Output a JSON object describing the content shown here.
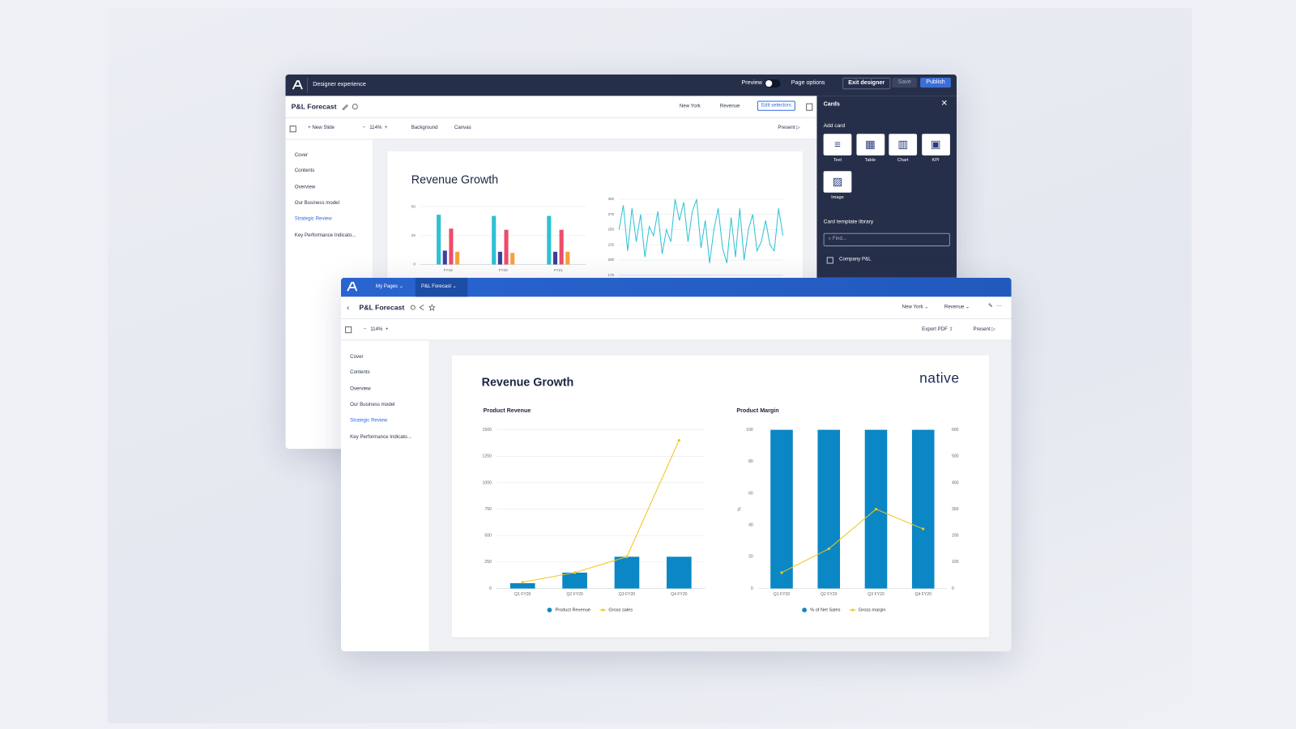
{
  "designer": {
    "header": {
      "title": "Designer experience",
      "preview": "Preview",
      "page_options": "Page options",
      "exit": "Exit designer",
      "save": "Save",
      "publish": "Publish"
    },
    "title": "P&L Forecast",
    "selectors": [
      "New York",
      "Revenue"
    ],
    "edit_selectors": "Edit selectors",
    "toolbar": {
      "new_slide": "New Slide",
      "zoom": "114%",
      "background": "Background",
      "canvas": "Canvas",
      "present": "Present"
    },
    "nav": [
      "Cover",
      "Contents",
      "Overview",
      "Our Business model",
      "Strategic Review",
      "Key Performance Indicato..."
    ],
    "slide": {
      "title": "Revenue Growth",
      "charts": [
        {
          "type": "bar",
          "categories": [
            "FY19",
            "FY20",
            "FY21"
          ],
          "ylim": [
            0,
            50
          ],
          "yticks": [
            0,
            25,
            50
          ],
          "grid": true,
          "series": [
            {
              "color": "#2ec2d4",
              "values": [
                43,
                42,
                42
              ]
            },
            {
              "color": "#3d3f9c",
              "values": [
                12,
                11,
                11
              ]
            },
            {
              "color": "#ec4d6a",
              "values": [
                31,
                30,
                30
              ]
            },
            {
              "color": "#f7a23b",
              "values": [
                11,
                10,
                11
              ]
            }
          ]
        },
        {
          "type": "line",
          "ylim": [
            175,
            300
          ],
          "yticks": [
            175,
            200,
            225,
            250,
            275,
            300
          ],
          "grid": true,
          "color": "#2ec2d4",
          "values": [
            250,
            290,
            215,
            285,
            230,
            275,
            205,
            255,
            240,
            280,
            210,
            250,
            230,
            300,
            265,
            295,
            230,
            280,
            300,
            220,
            265,
            195,
            250,
            285,
            220,
            195,
            270,
            205,
            285,
            200,
            250,
            275,
            215,
            230,
            265,
            225,
            215,
            285,
            240
          ]
        }
      ]
    },
    "cards": {
      "title": "Cards",
      "add_card": "Add card",
      "types": [
        "Text",
        "Table",
        "Chart",
        "KPI",
        "Image"
      ],
      "library": "Card template library",
      "search": "Find...",
      "items": [
        "Company P&L"
      ]
    }
  },
  "viewer": {
    "tabs": [
      "My Pages",
      "P&L Forecast"
    ],
    "title": "P&L Forecast",
    "selectors": [
      "New York",
      "Revenue"
    ],
    "zoom": "114%",
    "export": "Export PDF",
    "present": "Present",
    "nav": [
      "Cover",
      "Contents",
      "Overview",
      "Our Business model",
      "Strategic Review",
      "Key Performance Indicato..."
    ],
    "slide": {
      "title": "Revenue Growth",
      "logo": "native",
      "charts": [
        {
          "type": "bar",
          "title": "Product Revenue",
          "categories": [
            "Q1 FY20",
            "Q2 FY20",
            "Q3 FY20",
            "Q4 FY20"
          ],
          "ylim": [
            0,
            1500
          ],
          "yticks": [
            0,
            250,
            500,
            750,
            1000,
            1250,
            1500
          ],
          "grid": true,
          "series": [
            {
              "name": "Product Revenue",
              "type": "bar",
              "color": "#0a87c4",
              "values": [
                50,
                150,
                300,
                300
              ]
            },
            {
              "name": "Gross sales",
              "type": "line",
              "color": "#f0c419",
              "values": [
                60,
                150,
                300,
                1400
              ]
            }
          ]
        },
        {
          "type": "bar",
          "title": "Product Margin",
          "ylabel": "%",
          "categories": [
            "Q1 FY20",
            "Q2 FY20",
            "Q3 FY20",
            "Q4 FY20"
          ],
          "ylim": [
            0,
            100
          ],
          "yticks": [
            0,
            20,
            40,
            60,
            80,
            100
          ],
          "y2lim": [
            0,
            600
          ],
          "y2ticks": [
            0,
            100,
            200,
            300,
            400,
            500,
            600
          ],
          "grid": false,
          "series": [
            {
              "name": "% of Net Sales",
              "type": "bar",
              "color": "#0a87c4",
              "values": [
                100,
                100,
                100,
                100
              ]
            },
            {
              "name": "Gross margin",
              "type": "line",
              "axis": "y2",
              "color": "#f0c419",
              "values": [
                60,
                150,
                300,
                225
              ]
            }
          ]
        }
      ]
    }
  }
}
